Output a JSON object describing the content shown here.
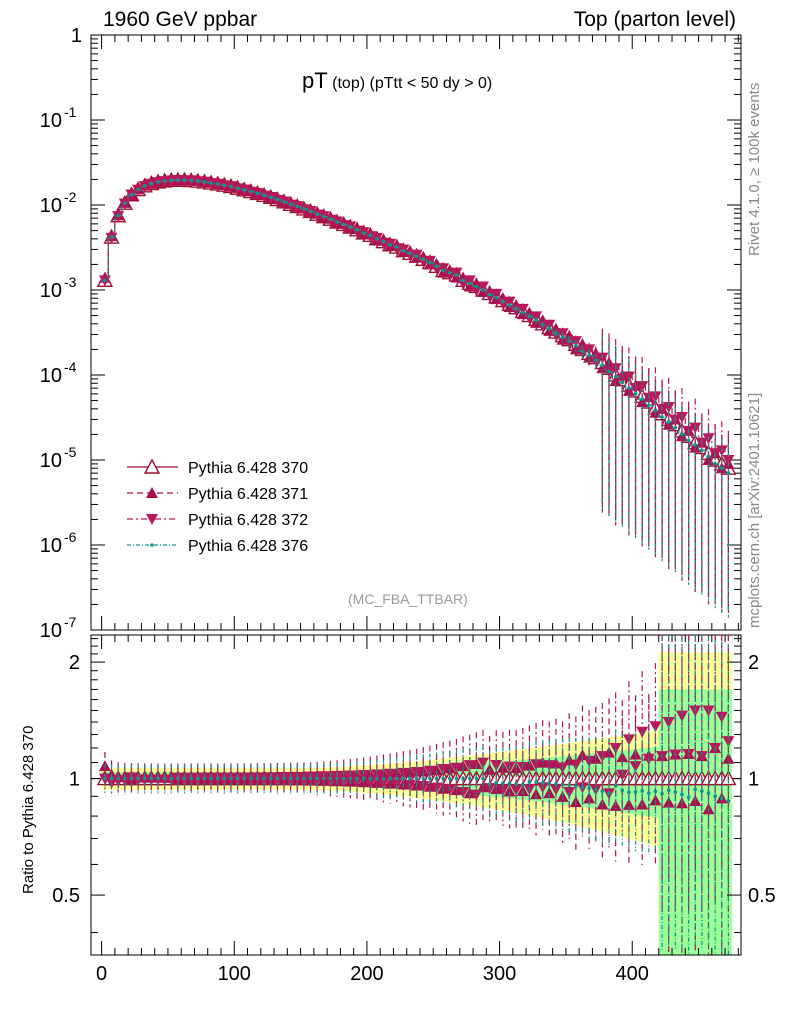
{
  "header": {
    "left": "1960 GeV ppbar",
    "right": "Top (parton level)"
  },
  "side": {
    "rivet": "Rivet 4.1.0, ≥ 100k events",
    "mcplots": "mcplots.cern.ch [arXiv:2401.10621]"
  },
  "analysis_tag": "(MC_FBA_TTBAR)",
  "ratio_ylabel": "Ratio to Pythia 6.428 370",
  "title": {
    "main": "pT",
    "sub1": "(top)",
    "sub2": "(pTtt < 50 dy > 0)"
  },
  "colors": {
    "s370": "#a0102e",
    "s371": "#a8104e",
    "s372": "#b8185a",
    "s376": "#10948c",
    "band_yellow": "#ffff99",
    "band_green": "#99ff99"
  },
  "chart_data": {
    "type": "line",
    "x_range": [
      -8,
      482
    ],
    "x_ticks": [
      "0",
      "100",
      "200",
      "300",
      "400"
    ],
    "main_panel": {
      "yscale": "log",
      "ylim": [
        1e-07,
        1
      ],
      "y_ticks": [
        {
          "base": "10",
          "exp": "-7"
        },
        {
          "base": "10",
          "exp": "-6"
        },
        {
          "base": "10",
          "exp": "-5"
        },
        {
          "base": "10",
          "exp": "-4"
        },
        {
          "base": "10",
          "exp": "-3"
        },
        {
          "base": "10",
          "exp": "-2"
        },
        {
          "base": "10",
          "exp": "-1"
        },
        {
          "base": "1",
          "exp": ""
        }
      ]
    },
    "ratio_panel": {
      "yscale": "log",
      "ylim": [
        0.35,
        2.35
      ],
      "y_ticks": [
        "0.5",
        "1",
        "2"
      ],
      "reference_line": 1
    },
    "legend": [
      {
        "label": "Pythia 6.428 370",
        "marker": "triangle-up-open",
        "dash": "solid"
      },
      {
        "label": "Pythia 6.428 371",
        "marker": "triangle-up",
        "dash": "dashed"
      },
      {
        "label": "Pythia 6.428 372",
        "marker": "triangle-down",
        "dash": "dashdot"
      },
      {
        "label": "Pythia 6.428 376",
        "marker": "dot",
        "dash": "dashdot-fine"
      }
    ],
    "x": [
      2.5,
      7.5,
      12.5,
      17.5,
      22.5,
      27.5,
      32.5,
      37.5,
      42.5,
      47.5,
      52.5,
      57.5,
      62.5,
      67.5,
      72.5,
      77.5,
      82.5,
      87.5,
      92.5,
      97.5,
      102.5,
      107.5,
      112.5,
      117.5,
      122.5,
      127.5,
      132.5,
      137.5,
      142.5,
      147.5,
      152.5,
      157.5,
      162.5,
      167.5,
      172.5,
      177.5,
      182.5,
      187.5,
      192.5,
      197.5,
      202.5,
      207.5,
      212.5,
      217.5,
      222.5,
      227.5,
      232.5,
      237.5,
      242.5,
      247.5,
      252.5,
      257.5,
      262.5,
      267.5,
      272.5,
      277.5,
      282.5,
      287.5,
      292.5,
      297.5,
      302.5,
      307.5,
      312.5,
      317.5,
      322.5,
      327.5,
      332.5,
      337.5,
      342.5,
      347.5,
      352.5,
      357.5,
      362.5,
      367.5,
      372.5,
      377.5,
      382.5,
      387.5,
      392.5,
      397.5,
      402.5,
      407.5,
      412.5,
      417.5,
      422.5,
      427.5,
      432.5,
      437.5,
      442.5,
      447.5,
      452.5,
      457.5,
      462.5,
      467.5,
      472.5
    ],
    "series": [
      {
        "name": "Pythia 6.428 370",
        "values": [
          0.0013,
          0.0042,
          0.0075,
          0.0105,
          0.0132,
          0.0152,
          0.0168,
          0.0179,
          0.0187,
          0.0192,
          0.0195,
          0.0196,
          0.0196,
          0.0194,
          0.0191,
          0.0187,
          0.0182,
          0.0177,
          0.0171,
          0.0165,
          0.0158,
          0.0151,
          0.0144,
          0.0137,
          0.013,
          0.0123,
          0.0116,
          0.0109,
          0.0102,
          0.0096,
          0.009,
          0.0084,
          0.0078,
          0.0073,
          0.0068,
          0.0063,
          0.0059,
          0.0055,
          0.0051,
          0.0047,
          0.0044,
          0.004,
          0.0037,
          0.0034,
          0.0032,
          0.0029,
          0.0027,
          0.0025,
          0.0023,
          0.0021,
          0.0019,
          0.0017,
          0.0016,
          0.0015,
          0.0013,
          0.0012,
          0.0011,
          0.001,
          0.00091,
          0.00083,
          0.00075,
          0.00068,
          0.00062,
          0.00056,
          0.0005,
          0.00045,
          0.0004,
          0.00036,
          0.00032,
          0.00029,
          0.00026,
          0.00023,
          0.0002,
          0.00018,
          0.00016,
          0.00014,
          0.00012,
          0.0001,
          8.8e-05,
          7.6e-05,
          6.5e-05,
          5.6e-05,
          4.8e-05,
          4.1e-05,
          3.5e-05,
          3e-05,
          2.6e-05,
          2.2e-05,
          1.9e-05,
          1.6e-05,
          1.4e-05,
          1.2e-05,
          1e-05,
          9e-06,
          8e-06
        ]
      },
      {
        "name": "Pythia 6.428 371",
        "values": [
          0.0014,
          0.0043,
          0.0076,
          0.0106,
          0.0131,
          0.0153,
          0.0169,
          0.018,
          0.0188,
          0.0193,
          0.0196,
          0.0195,
          0.0197,
          0.0193,
          0.0192,
          0.0186,
          0.0183,
          0.0176,
          0.0172,
          0.0164,
          0.0159,
          0.015,
          0.0145,
          0.0136,
          0.0131,
          0.0122,
          0.0117,
          0.0108,
          0.0103,
          0.0095,
          0.0091,
          0.0083,
          0.0079,
          0.0072,
          0.0069,
          0.0062,
          0.006,
          0.0054,
          0.0052,
          0.0046,
          0.0045,
          0.0039,
          0.0038,
          0.0033,
          0.0033,
          0.0028,
          0.0028,
          0.0024,
          0.0024,
          0.002,
          0.002,
          0.0016,
          0.0017,
          0.0014,
          0.0014,
          0.0011,
          0.0012,
          0.00095,
          0.00096,
          0.00078,
          0.0008,
          0.00063,
          0.00066,
          0.00052,
          0.00054,
          0.00041,
          0.00044,
          0.00033,
          0.00035,
          0.00026,
          0.00029,
          0.0002,
          0.00023,
          0.00016,
          0.00018,
          0.00012,
          0.00014,
          8.5e-05,
          0.0001,
          6.5e-05,
          7.5e-05,
          4.8e-05,
          5.5e-05,
          3.6e-05,
          4e-05,
          2.6e-05,
          3e-05,
          1.9e-05,
          2.2e-05,
          1.4e-05,
          1.6e-05,
          1e-05,
          1.2e-05,
          8e-06,
          9e-06
        ]
      },
      {
        "name": "Pythia 6.428 372",
        "values": [
          0.0013,
          0.0041,
          0.0074,
          0.0104,
          0.0133,
          0.0151,
          0.0167,
          0.0178,
          0.0186,
          0.0191,
          0.0194,
          0.0197,
          0.0195,
          0.0195,
          0.019,
          0.0188,
          0.0181,
          0.0178,
          0.017,
          0.0166,
          0.0157,
          0.0152,
          0.0143,
          0.0138,
          0.0129,
          0.0124,
          0.0115,
          0.011,
          0.0101,
          0.0097,
          0.0089,
          0.0085,
          0.0077,
          0.0074,
          0.0067,
          0.0064,
          0.0058,
          0.0056,
          0.005,
          0.0048,
          0.0043,
          0.0041,
          0.0036,
          0.0035,
          0.0031,
          0.003,
          0.0026,
          0.0026,
          0.0022,
          0.0022,
          0.0018,
          0.0018,
          0.0015,
          0.0016,
          0.0012,
          0.0013,
          0.001,
          0.0011,
          0.00086,
          0.0009,
          0.0007,
          0.00073,
          0.00058,
          0.0006,
          0.00047,
          0.00049,
          0.00038,
          0.00039,
          0.0003,
          0.00031,
          0.00024,
          0.00025,
          0.00019,
          0.0002,
          0.00015,
          0.00016,
          0.00011,
          0.00012,
          9e-05,
          9.6e-05,
          7e-05,
          7.4e-05,
          5.4e-05,
          5.6e-05,
          4e-05,
          4.2e-05,
          3e-05,
          3.2e-05,
          2.2e-05,
          2.4e-05,
          1.6e-05,
          1.8e-05,
          1.2e-05,
          1.3e-05,
          1e-05
        ]
      },
      {
        "name": "Pythia 6.428 376",
        "values": [
          0.0013,
          0.0042,
          0.0075,
          0.0105,
          0.0132,
          0.0152,
          0.0168,
          0.0179,
          0.0187,
          0.0192,
          0.0195,
          0.0196,
          0.0196,
          0.0194,
          0.0191,
          0.0187,
          0.0182,
          0.0177,
          0.0171,
          0.0165,
          0.0158,
          0.0151,
          0.0144,
          0.0137,
          0.013,
          0.0123,
          0.0116,
          0.0109,
          0.0102,
          0.0096,
          0.009,
          0.0084,
          0.0078,
          0.0073,
          0.0068,
          0.0063,
          0.0059,
          0.0055,
          0.0051,
          0.0047,
          0.0044,
          0.004,
          0.0037,
          0.0034,
          0.0032,
          0.0029,
          0.0027,
          0.0025,
          0.0023,
          0.0021,
          0.0019,
          0.0017,
          0.0016,
          0.0015,
          0.0013,
          0.0012,
          0.0011,
          0.001,
          0.00088,
          0.00081,
          0.00073,
          0.00066,
          0.0006,
          0.00054,
          0.00049,
          0.00044,
          0.00039,
          0.00035,
          0.00031,
          0.00028,
          0.00025,
          0.00022,
          0.00019,
          0.00017,
          0.00015,
          0.00013,
          0.00011,
          9.6e-05,
          8.2e-05,
          7e-05,
          6e-05,
          5.2e-05,
          4.4e-05,
          3.8e-05,
          3.2e-05,
          2.8e-05,
          2.4e-05,
          2e-05,
          1.7e-05,
          1.5e-05,
          1.3e-05,
          1.1e-05,
          9e-06,
          8e-06,
          7e-06
        ]
      }
    ]
  }
}
